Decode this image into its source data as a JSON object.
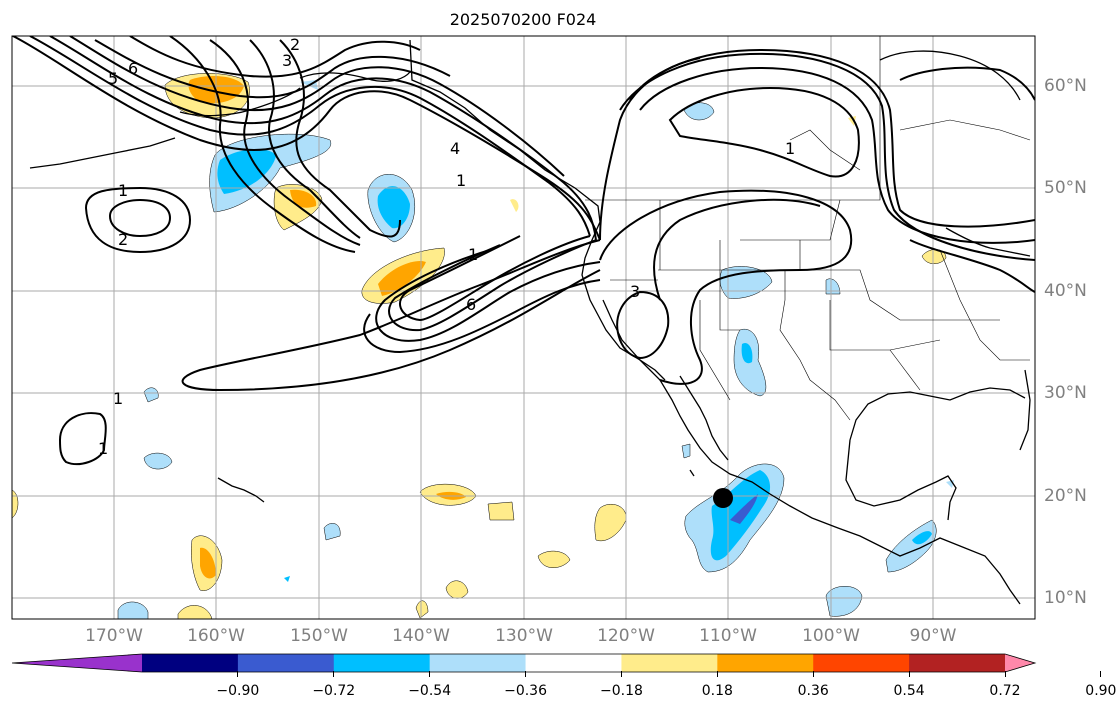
{
  "title": "2025070200 F024",
  "map": {
    "lon_range": [
      -180,
      -80
    ],
    "lat_range": [
      8,
      65
    ],
    "lon_labels": [
      "170°W",
      "160°W",
      "150°W",
      "140°W",
      "130°W",
      "120°W",
      "110°W",
      "100°W",
      "90°W"
    ],
    "lat_labels": [
      "10°N",
      "20°N",
      "30°N",
      "40°N",
      "50°N",
      "60°N"
    ],
    "contour_labels": [
      "1",
      "2",
      "3",
      "4",
      "5",
      "6",
      "1",
      "3",
      "6",
      "1",
      "2",
      "1",
      "1",
      "1"
    ],
    "marker": "black-dot"
  },
  "colorbar": {
    "ticks": [
      "−0.90",
      "−0.72",
      "−0.54",
      "−0.36",
      "−0.18",
      "0.18",
      "0.36",
      "0.54",
      "0.72",
      "0.90"
    ],
    "colors": [
      "#9932cc",
      "#000080",
      "#3a5bd0",
      "#00bfff",
      "#aedffa",
      "#ffffff",
      "#ffec8b",
      "#ffa500",
      "#ff4500",
      "#b22222",
      "#ff88aa"
    ]
  }
}
